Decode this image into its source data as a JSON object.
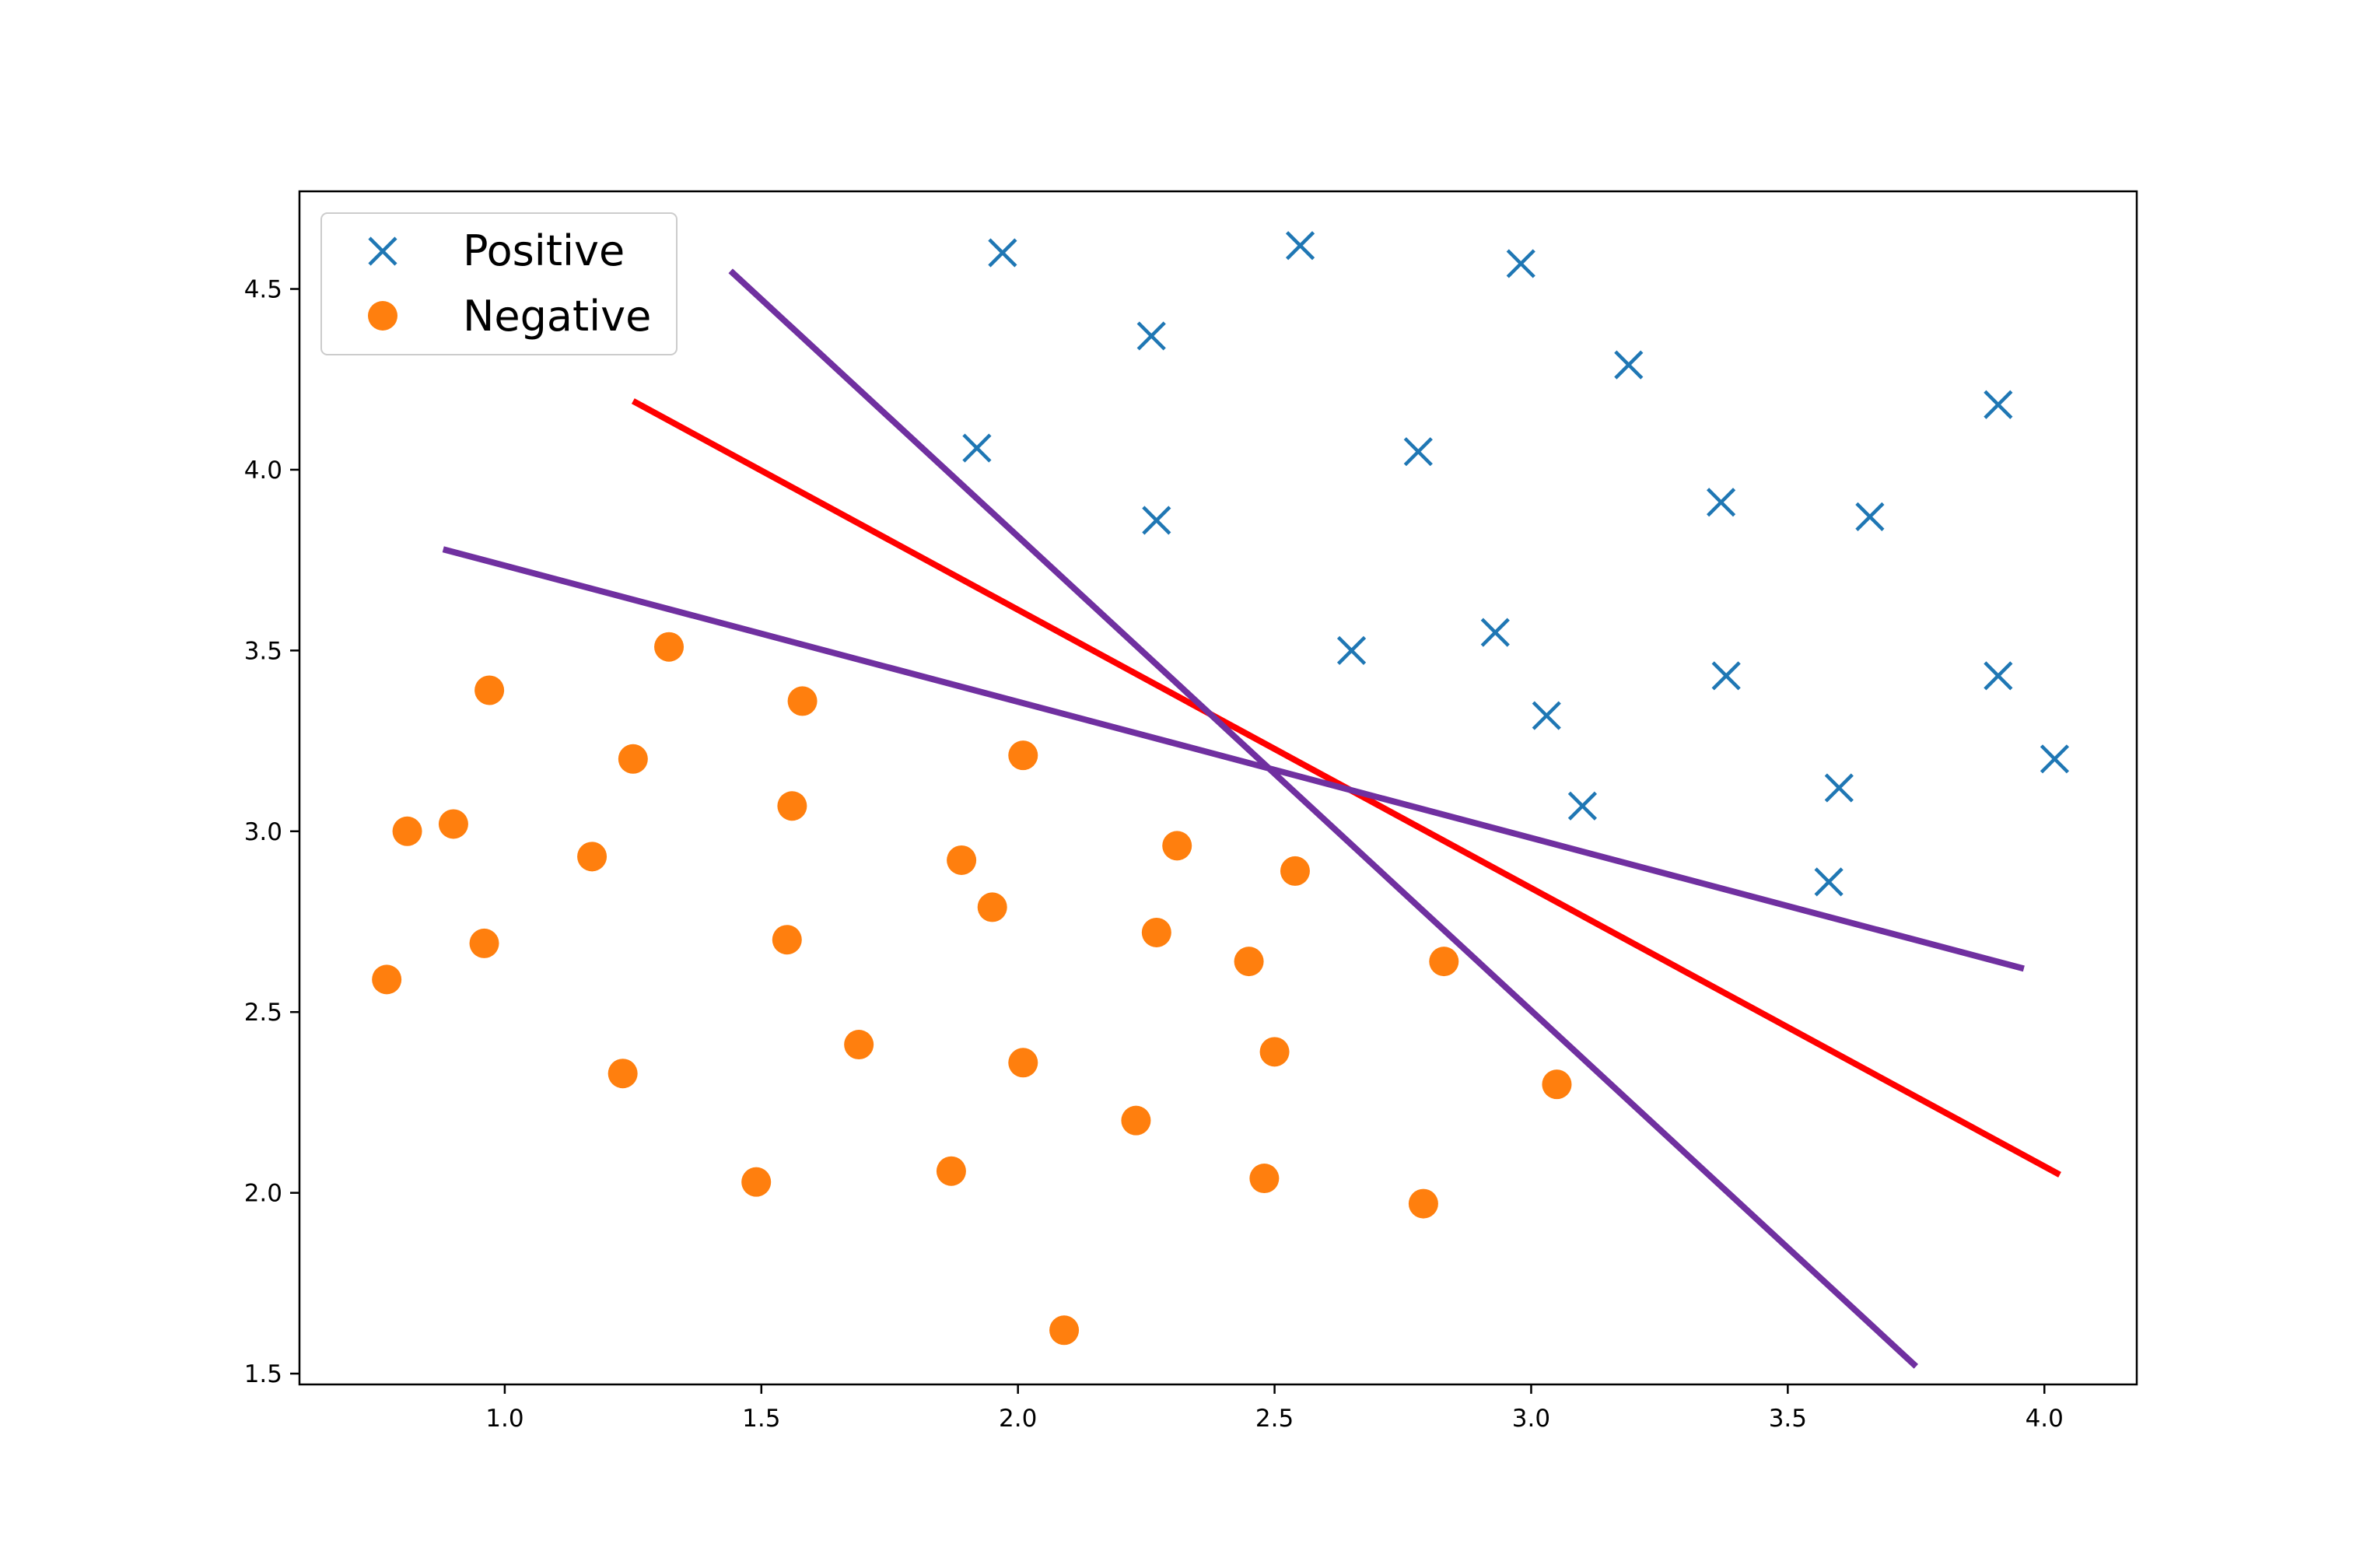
{
  "chart_data": {
    "type": "scatter",
    "title": "",
    "xlabel": "",
    "ylabel": "",
    "xlim": [
      0.6,
      4.18
    ],
    "ylim": [
      1.47,
      4.77
    ],
    "xticks": [
      1.0,
      1.5,
      2.0,
      2.5,
      3.0,
      3.5,
      4.0
    ],
    "yticks": [
      1.5,
      2.0,
      2.5,
      3.0,
      3.5,
      4.0,
      4.5
    ],
    "xtick_labels": [
      "1.0",
      "1.5",
      "2.0",
      "2.5",
      "3.0",
      "3.5",
      "4.0"
    ],
    "ytick_labels": [
      "1.5",
      "2.0",
      "2.5",
      "3.0",
      "3.5",
      "4.0",
      "4.5"
    ],
    "grid": false,
    "legend": {
      "position": "upper-left",
      "entries": [
        {
          "label": "Positive",
          "marker": "x",
          "color": "#1f77b4"
        },
        {
          "label": "Negative",
          "marker": "circle",
          "color": "#ff7f0e"
        }
      ]
    },
    "series": [
      {
        "name": "Positive",
        "marker": "x",
        "color": "#1f77b4",
        "points": [
          [
            1.97,
            4.6
          ],
          [
            2.55,
            4.62
          ],
          [
            2.98,
            4.57
          ],
          [
            2.26,
            4.37
          ],
          [
            3.19,
            4.29
          ],
          [
            3.91,
            4.18
          ],
          [
            1.92,
            4.06
          ],
          [
            2.78,
            4.05
          ],
          [
            3.37,
            3.91
          ],
          [
            3.66,
            3.87
          ],
          [
            2.27,
            3.86
          ],
          [
            2.65,
            3.5
          ],
          [
            2.93,
            3.55
          ],
          [
            3.38,
            3.43
          ],
          [
            3.91,
            3.43
          ],
          [
            3.03,
            3.32
          ],
          [
            4.02,
            3.2
          ],
          [
            3.1,
            3.07
          ],
          [
            3.6,
            3.12
          ],
          [
            3.58,
            2.86
          ]
        ]
      },
      {
        "name": "Negative",
        "marker": "circle",
        "color": "#ff7f0e",
        "points": [
          [
            1.32,
            3.51
          ],
          [
            0.97,
            3.39
          ],
          [
            1.58,
            3.36
          ],
          [
            2.01,
            3.21
          ],
          [
            1.25,
            3.2
          ],
          [
            1.56,
            3.07
          ],
          [
            0.81,
            3.0
          ],
          [
            0.9,
            3.02
          ],
          [
            2.31,
            2.96
          ],
          [
            1.89,
            2.92
          ],
          [
            1.17,
            2.93
          ],
          [
            2.54,
            2.89
          ],
          [
            1.95,
            2.79
          ],
          [
            2.27,
            2.72
          ],
          [
            0.96,
            2.69
          ],
          [
            1.55,
            2.7
          ],
          [
            2.45,
            2.64
          ],
          [
            2.83,
            2.64
          ],
          [
            0.77,
            2.59
          ],
          [
            1.69,
            2.41
          ],
          [
            2.5,
            2.39
          ],
          [
            2.01,
            2.36
          ],
          [
            1.23,
            2.33
          ],
          [
            3.05,
            2.3
          ],
          [
            2.23,
            2.2
          ],
          [
            1.87,
            2.06
          ],
          [
            1.49,
            2.03
          ],
          [
            2.48,
            2.04
          ],
          [
            2.79,
            1.97
          ],
          [
            2.09,
            1.62
          ]
        ]
      }
    ],
    "lines": [
      {
        "color": "#ff0000",
        "points": [
          [
            1.25,
            4.19
          ],
          [
            4.03,
            2.05
          ]
        ]
      },
      {
        "color": "#7030a0",
        "points": [
          [
            1.44,
            4.55
          ],
          [
            3.75,
            1.52
          ]
        ]
      },
      {
        "color": "#7030a0",
        "points": [
          [
            0.88,
            3.78
          ],
          [
            3.96,
            2.62
          ]
        ]
      }
    ]
  }
}
